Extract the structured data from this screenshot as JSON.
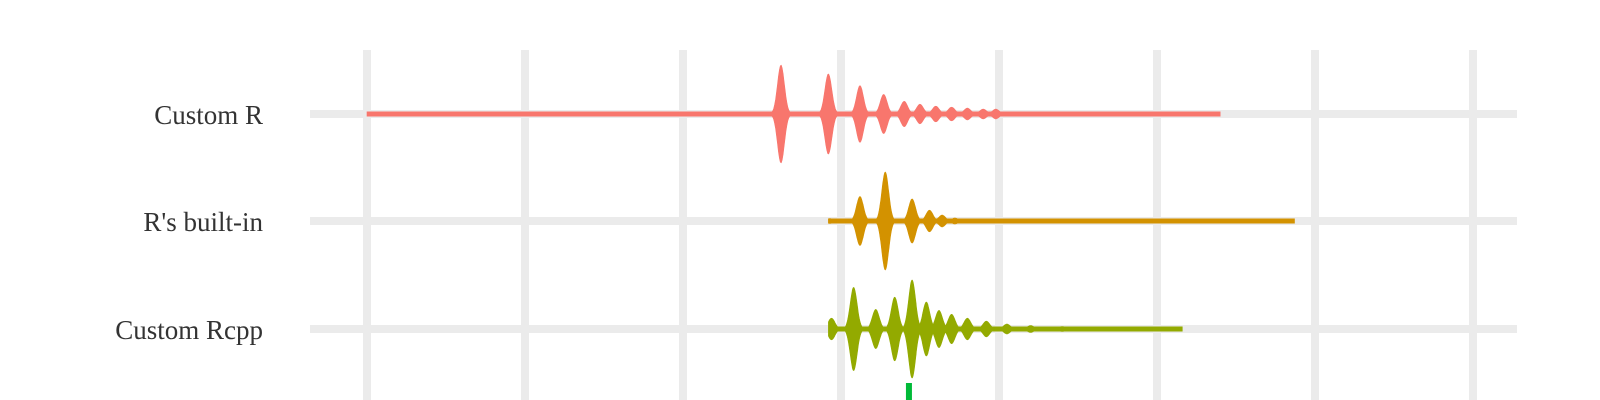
{
  "chart_data": {
    "type": "violin",
    "title": "",
    "xlabel": "",
    "ylabel": "",
    "grid": true,
    "legend": "none",
    "categories": [
      "Custom R",
      "R's built-in",
      "Custom Rcpp"
    ],
    "x_range": [
      0,
      7.6
    ],
    "series": [
      {
        "name": "Custom R",
        "color": "#F8766D",
        "range": [
          0,
          5.4
        ],
        "peaks": [
          {
            "x": 2.62,
            "density": 1.0
          },
          {
            "x": 2.92,
            "density": 0.82
          },
          {
            "x": 3.12,
            "density": 0.58
          },
          {
            "x": 3.27,
            "density": 0.4
          },
          {
            "x": 3.4,
            "density": 0.26
          },
          {
            "x": 3.5,
            "density": 0.2
          },
          {
            "x": 3.6,
            "density": 0.16
          },
          {
            "x": 3.7,
            "density": 0.14
          },
          {
            "x": 3.8,
            "density": 0.12
          },
          {
            "x": 3.9,
            "density": 0.1
          },
          {
            "x": 3.98,
            "density": 0.1
          }
        ]
      },
      {
        "name": "R's built-in",
        "color": "#D39200",
        "range": [
          2.92,
          5.87
        ],
        "peaks": [
          {
            "x": 2.93,
            "density": 0.05
          },
          {
            "x": 3.12,
            "density": 0.5
          },
          {
            "x": 3.28,
            "density": 1.0
          },
          {
            "x": 3.45,
            "density": 0.45
          },
          {
            "x": 3.56,
            "density": 0.22
          },
          {
            "x": 3.64,
            "density": 0.12
          },
          {
            "x": 3.72,
            "density": 0.06
          }
        ]
      },
      {
        "name": "Custom Rcpp",
        "color": "#93AA00",
        "range": [
          2.92,
          5.16
        ],
        "peaks": [
          {
            "x": 2.94,
            "density": 0.22
          },
          {
            "x": 3.08,
            "density": 0.85
          },
          {
            "x": 3.22,
            "density": 0.4
          },
          {
            "x": 3.34,
            "density": 0.65
          },
          {
            "x": 3.45,
            "density": 1.0
          },
          {
            "x": 3.54,
            "density": 0.55
          },
          {
            "x": 3.62,
            "density": 0.38
          },
          {
            "x": 3.7,
            "density": 0.3
          },
          {
            "x": 3.8,
            "density": 0.22
          },
          {
            "x": 3.92,
            "density": 0.16
          },
          {
            "x": 4.05,
            "density": 0.1
          },
          {
            "x": 4.2,
            "density": 0.07
          },
          {
            "x": 4.4,
            "density": 0.05
          }
        ]
      }
    ],
    "partial_series_below": {
      "color": "#00BA38",
      "x": 3.43
    }
  }
}
